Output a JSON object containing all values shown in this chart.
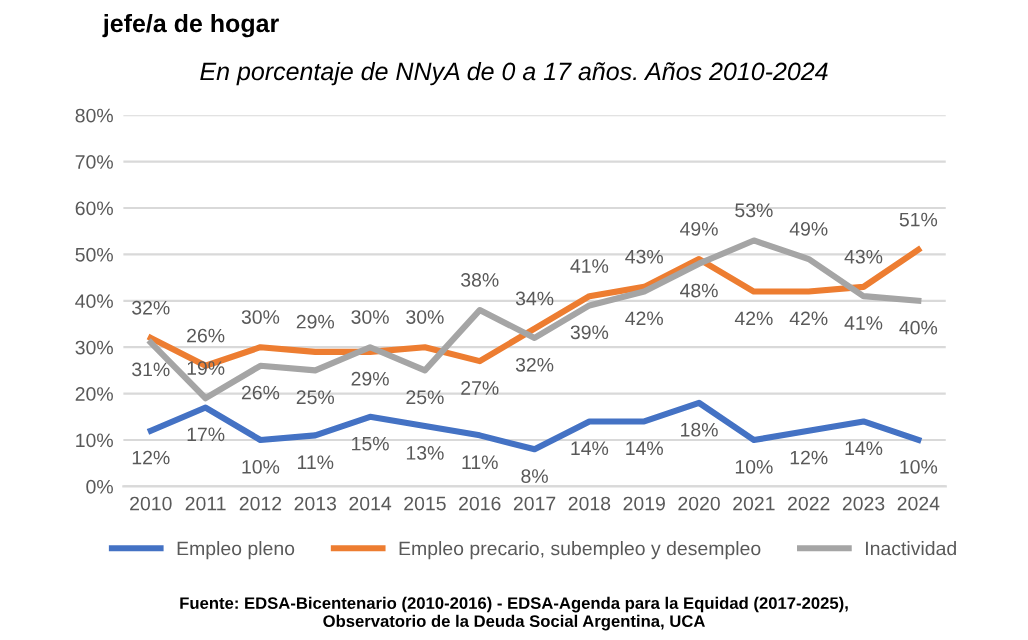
{
  "chart_data": {
    "type": "line",
    "title": "jefe/a de hogar",
    "subtitle": "En porcentaje de NNyA de 0 a 17 años. Años 2010-2024",
    "categories": [
      "2010",
      "2011",
      "2012",
      "2013",
      "2014",
      "2015",
      "2016",
      "2017",
      "2018",
      "2019",
      "2020",
      "2021",
      "2022",
      "2023",
      "2024"
    ],
    "series": [
      {
        "name": "Empleo pleno",
        "color": "#4472c4",
        "values": [
          12,
          17,
          10,
          11,
          15,
          13,
          11,
          8,
          14,
          14,
          18,
          10,
          12,
          14,
          10
        ],
        "value_labels": [
          "12%",
          "17%",
          "10%",
          "11%",
          "15%",
          "13%",
          "11%",
          "8%",
          "14%",
          "14%",
          "18%",
          "10%",
          "12%",
          "14%",
          "10%"
        ]
      },
      {
        "name": "Empleo precario, subempleo y desempleo",
        "color": "#ed7d31",
        "values": [
          32,
          26,
          30,
          29,
          29,
          30,
          27,
          34,
          41,
          43,
          49,
          42,
          42,
          43,
          51
        ],
        "value_labels": [
          "32%",
          "26%",
          "30%",
          "29%",
          "29%",
          "30%",
          "27%",
          "34%",
          "41%",
          "43%",
          "49%",
          "42%",
          "42%",
          "43%",
          "51%"
        ]
      },
      {
        "name": "Inactividad",
        "color": "#a5a5a5",
        "values": [
          31,
          19,
          26,
          25,
          30,
          25,
          38,
          32,
          39,
          42,
          48,
          53,
          49,
          41,
          40
        ],
        "value_labels": [
          "31%",
          "19%",
          "26%",
          "25%",
          "30%",
          "25%",
          "38%",
          "32%",
          "39%",
          "42%",
          "48%",
          "53%",
          "49%",
          "41%",
          "40%"
        ]
      }
    ],
    "ylim": [
      0,
      80
    ],
    "yticks": [
      {
        "value": 0,
        "label": "0%"
      },
      {
        "value": 10,
        "label": "10%"
      },
      {
        "value": 20,
        "label": "20%"
      },
      {
        "value": 30,
        "label": "30%"
      },
      {
        "value": 40,
        "label": "40%"
      },
      {
        "value": 50,
        "label": "50%"
      },
      {
        "value": 60,
        "label": "60%"
      },
      {
        "value": 70,
        "label": "70%"
      },
      {
        "value": 80,
        "label": "80%"
      }
    ],
    "grid": "y",
    "legend": "bottom",
    "marker": "none",
    "line_style": "solid",
    "annotations": [
      "Fuente: EDSA-Bicentenario (2010-2016) - EDSA-Agenda para la Equidad (2017-2025),\nObservatorio de la Deuda Social Argentina, UCA"
    ]
  }
}
